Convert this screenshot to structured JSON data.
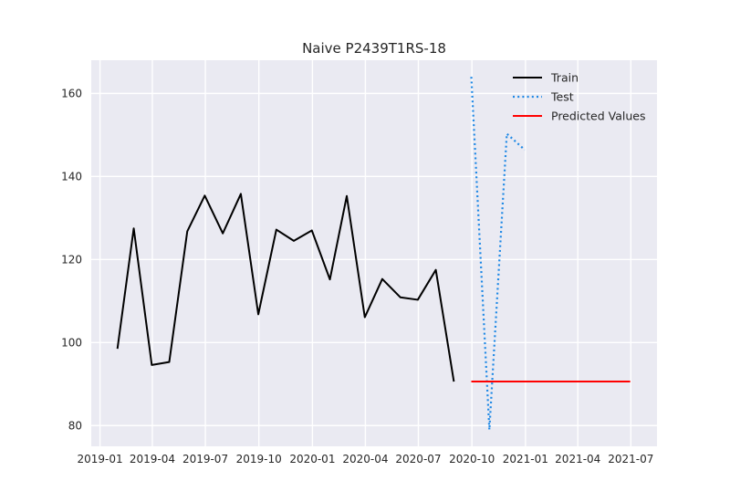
{
  "chart_data": {
    "type": "line",
    "title": "Naive P2439T1RS-18",
    "xlabel": "",
    "ylabel": "",
    "x_axis": "date",
    "xlim": [
      "2018-12-17",
      "2021-08-15"
    ],
    "ylim": [
      75,
      168
    ],
    "grid": true,
    "legend_position": "top-right",
    "x_ticks": [
      {
        "value": "2019-01-01",
        "label": "2019-01"
      },
      {
        "value": "2019-04-01",
        "label": "2019-04"
      },
      {
        "value": "2019-07-01",
        "label": "2019-07"
      },
      {
        "value": "2019-10-01",
        "label": "2019-10"
      },
      {
        "value": "2020-01-01",
        "label": "2020-01"
      },
      {
        "value": "2020-04-01",
        "label": "2020-04"
      },
      {
        "value": "2020-07-01",
        "label": "2020-07"
      },
      {
        "value": "2020-10-01",
        "label": "2020-10"
      },
      {
        "value": "2021-01-01",
        "label": "2021-01"
      },
      {
        "value": "2021-04-01",
        "label": "2021-04"
      },
      {
        "value": "2021-07-01",
        "label": "2021-07"
      }
    ],
    "y_ticks": [
      {
        "value": 80,
        "label": "80"
      },
      {
        "value": 100,
        "label": "100"
      },
      {
        "value": 120,
        "label": "120"
      },
      {
        "value": 140,
        "label": "140"
      },
      {
        "value": 160,
        "label": "160"
      }
    ],
    "series": [
      {
        "name": "Train",
        "color": "#000000",
        "style": "solid",
        "points": [
          [
            "2019-01-31",
            98.5
          ],
          [
            "2019-02-28",
            127.5
          ],
          [
            "2019-03-31",
            94.6
          ],
          [
            "2019-04-30",
            95.3
          ],
          [
            "2019-05-31",
            126.8
          ],
          [
            "2019-06-30",
            135.4
          ],
          [
            "2019-07-31",
            126.3
          ],
          [
            "2019-08-31",
            135.8
          ],
          [
            "2019-09-30",
            106.8
          ],
          [
            "2019-10-31",
            127.2
          ],
          [
            "2019-11-30",
            124.5
          ],
          [
            "2019-12-31",
            127.0
          ],
          [
            "2020-01-31",
            115.2
          ],
          [
            "2020-02-29",
            135.3
          ],
          [
            "2020-03-31",
            106.1
          ],
          [
            "2020-04-30",
            115.3
          ],
          [
            "2020-05-31",
            110.9
          ],
          [
            "2020-06-30",
            110.3
          ],
          [
            "2020-07-31",
            117.5
          ],
          [
            "2020-08-31",
            90.6
          ]
        ]
      },
      {
        "name": "Test",
        "color": "#1e88e5",
        "style": "dotted",
        "points": [
          [
            "2020-09-30",
            164.0
          ],
          [
            "2020-10-31",
            79.0
          ],
          [
            "2020-11-30",
            150.3
          ],
          [
            "2020-12-31",
            146.4
          ]
        ]
      },
      {
        "name": "Predicted Values",
        "color": "#ff0000",
        "style": "solid",
        "points": [
          [
            "2020-09-30",
            90.6
          ],
          [
            "2021-06-30",
            90.6
          ]
        ]
      }
    ]
  }
}
